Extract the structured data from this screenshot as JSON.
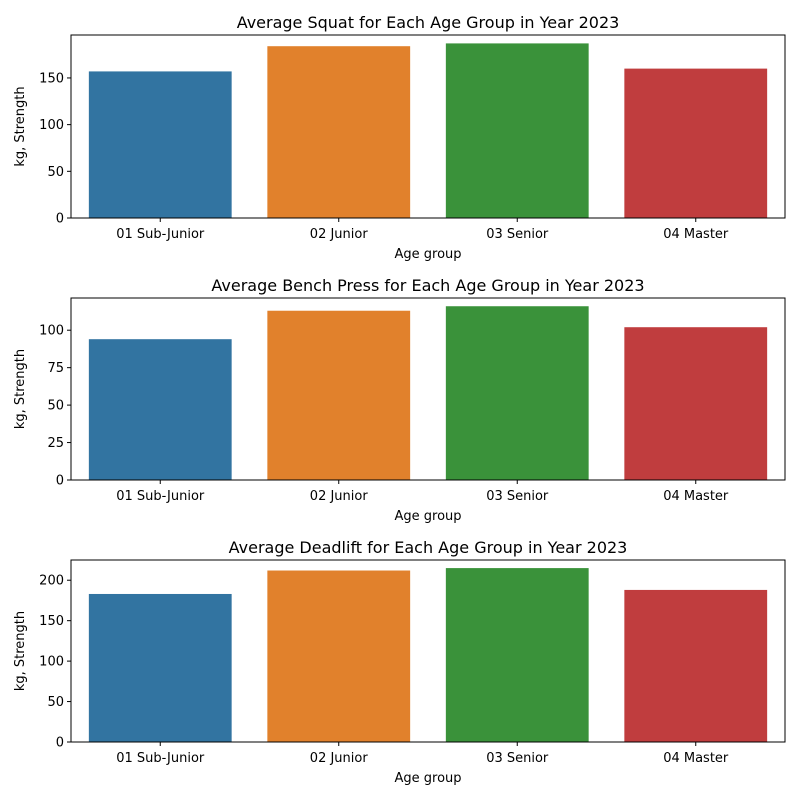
{
  "chart_data": [
    {
      "type": "bar",
      "title": "Average Squat for Each Age Group in Year 2023",
      "xlabel": "Age group",
      "ylabel": "kg, Strength",
      "categories": [
        "01 Sub-Junior",
        "02 Junior",
        "03 Senior",
        "04 Master"
      ],
      "values": [
        157,
        184,
        187,
        160
      ],
      "ylim": [
        0,
        196
      ],
      "yticks": [
        0,
        50,
        100,
        150
      ],
      "colors": [
        "#3274a1",
        "#e1812c",
        "#3a923a",
        "#c03d3e"
      ],
      "grid": false,
      "legend": "none"
    },
    {
      "type": "bar",
      "title": "Average Bench Press for Each Age Group in Year 2023",
      "xlabel": "Age group",
      "ylabel": "kg, Strength",
      "categories": [
        "01 Sub-Junior",
        "02 Junior",
        "03 Senior",
        "04 Master"
      ],
      "values": [
        94,
        113,
        116,
        102
      ],
      "ylim": [
        0,
        121.5
      ],
      "yticks": [
        0,
        25,
        50,
        75,
        100
      ],
      "colors": [
        "#3274a1",
        "#e1812c",
        "#3a923a",
        "#c03d3e"
      ],
      "grid": false,
      "legend": "none"
    },
    {
      "type": "bar",
      "title": "Average Deadlift for Each Age Group in Year 2023",
      "xlabel": "Age group",
      "ylabel": "kg, Strength",
      "categories": [
        "01 Sub-Junior",
        "02 Junior",
        "03 Senior",
        "04 Master"
      ],
      "values": [
        183,
        212,
        215,
        188
      ],
      "ylim": [
        0,
        225
      ],
      "yticks": [
        0,
        50,
        100,
        150,
        200
      ],
      "colors": [
        "#3274a1",
        "#e1812c",
        "#3a923a",
        "#c03d3e"
      ],
      "grid": false,
      "legend": "none"
    }
  ]
}
